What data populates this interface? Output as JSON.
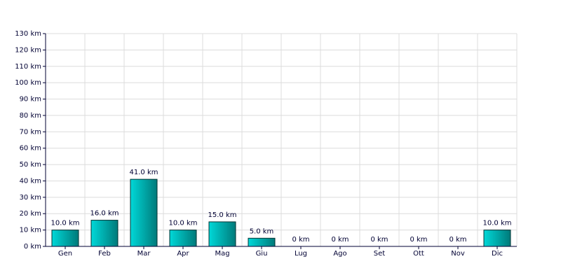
{
  "chart_data": {
    "type": "bar",
    "categories": [
      "Gen",
      "Feb",
      "Mar",
      "Apr",
      "Mag",
      "Giu",
      "Lug",
      "Ago",
      "Set",
      "Ott",
      "Nov",
      "Dic"
    ],
    "values": [
      10,
      16,
      41,
      10,
      15,
      5,
      0,
      0,
      0,
      0,
      0,
      10
    ],
    "value_labels": [
      "10.0 km",
      "16.0 km",
      "41.0 km",
      "10.0 km",
      "15.0 km",
      "5.0 km",
      "0 km",
      "0 km",
      "0 km",
      "0 km",
      "0 km",
      "10.0 km"
    ],
    "color": "#00d8d8",
    "ylim": [
      0,
      130
    ],
    "yticks": [
      {
        "value": 0,
        "label": "0 km"
      },
      {
        "value": 10,
        "label": "10 km"
      },
      {
        "value": 20,
        "label": "20 km"
      },
      {
        "value": 30,
        "label": "30 km"
      },
      {
        "value": 40,
        "label": "40 km"
      },
      {
        "value": 50,
        "label": "50 km"
      },
      {
        "value": 60,
        "label": "60 km"
      },
      {
        "value": 70,
        "label": "70 km"
      },
      {
        "value": 80,
        "label": "80 km"
      },
      {
        "value": 90,
        "label": "90 km"
      },
      {
        "value": 100,
        "label": "100 km"
      },
      {
        "value": 110,
        "label": "110 km"
      },
      {
        "value": 120,
        "label": "120 km"
      },
      {
        "value": 130,
        "label": "130 km"
      }
    ],
    "grid": true
  }
}
